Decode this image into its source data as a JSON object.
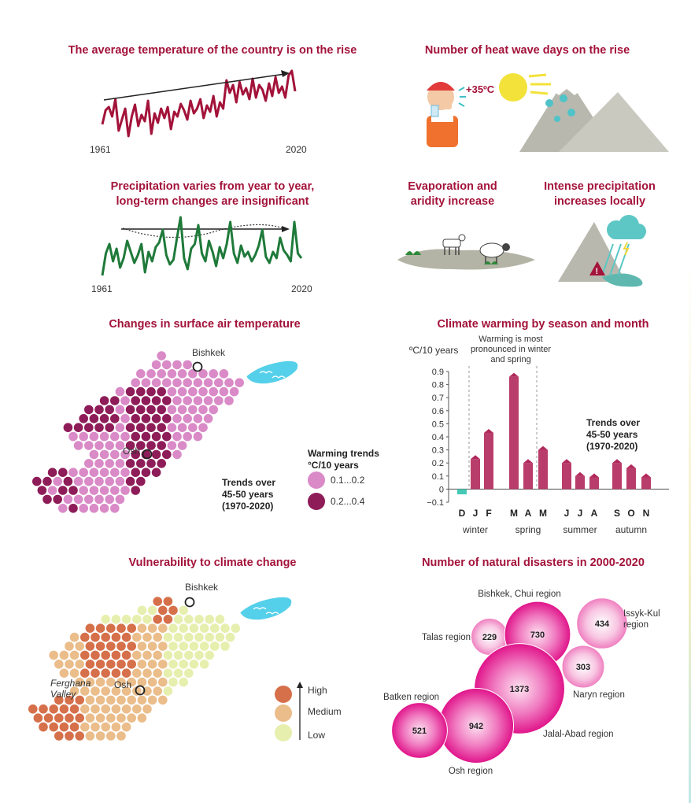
{
  "temperature_panel": {
    "title": "The average temperature of the country is on the rise",
    "start_year": "1961",
    "end_year": "2020"
  },
  "heatwave_panel": {
    "title": "Number of heat wave days on the rise",
    "temp_label": "+35ºC"
  },
  "precip_panel": {
    "title_line1": "Precipitation varies from year to year,",
    "title_line2": "long-term changes are insignificant",
    "start_year": "1961",
    "end_year": "2020"
  },
  "evaporation_panel": {
    "title_line1": "Evaporation and",
    "title_line2": "aridity increase"
  },
  "intense_precip_panel": {
    "title_line1": "Intense precipitation",
    "title_line2": "increases locally"
  },
  "surface_temp_map": {
    "title": "Changes in surface air temperature",
    "city1": "Bishkek",
    "city2": "Osh",
    "legend_title_line1": "Warming trends",
    "legend_title_line2": "°C/10 years",
    "legend_low": "0.1...0.2",
    "legend_high": "0.2...0.4",
    "note_line1": "Trends over",
    "note_line2": "45-50 years",
    "note_line3": "(1970-2020)",
    "colors": {
      "low": "#d98ac7",
      "high": "#8e1c58"
    }
  },
  "vulnerability_map": {
    "title": "Vulnerability to climate change",
    "city1": "Bishkek",
    "city2": "Osh",
    "region_label_line1": "Ferghana",
    "region_label_line2": "Valley",
    "legend_high": "High",
    "legend_medium": "Medium",
    "legend_low": "Low",
    "colors": {
      "high": "#d6704a",
      "medium": "#ebbd8a",
      "low": "#e7efae"
    }
  },
  "chart_data": [
    {
      "type": "line",
      "x": [
        1961,
        2020
      ],
      "series": [],
      "title": "The average temperature of the country is on the rise",
      "trend": "rising"
    },
    {
      "type": "line",
      "x": [
        1961,
        2020
      ],
      "series": [],
      "title": "Precipitation varies from year to year, long-term changes are insignificant",
      "trend": "no significant change"
    },
    {
      "type": "bar",
      "title": "Climate warming by season and month",
      "ylabel": "ºC/10 years",
      "annotation": "Warming is most pronounced in winter and spring",
      "note_line1": "Trends over",
      "note_line2": "45-50 years",
      "note_line3": "(1970-2020)",
      "ylim": [
        -0.1,
        0.9
      ],
      "yticks": [
        "0.9",
        "0.8",
        "0.7",
        "0.6",
        "0.5",
        "0.4",
        "0.3",
        "0.2",
        "0.1",
        "0",
        "−0.1"
      ],
      "categories": [
        "D",
        "J",
        "F",
        "M",
        "A",
        "M",
        "J",
        "J",
        "A",
        "S",
        "O",
        "N"
      ],
      "values": [
        -0.04,
        0.23,
        0.43,
        0.86,
        0.2,
        0.3,
        0.2,
        0.1,
        0.09,
        0.2,
        0.16,
        0.09
      ],
      "groups": [
        "winter",
        "spring",
        "summer",
        "autumn"
      ],
      "colors": {
        "positive": "#b1285a",
        "negative": "#46c9b4"
      }
    },
    {
      "type": "bubble",
      "title": "Number of natural disasters in 2000-2020",
      "items": [
        {
          "label": "Bishkek, Chui region",
          "value": 730
        },
        {
          "label": "Issyk-Kul region",
          "value": 434
        },
        {
          "label": "Talas region",
          "value": 229
        },
        {
          "label": "Naryn region",
          "value": 303
        },
        {
          "label": "Jalal-Abad region",
          "value": 1373
        },
        {
          "label": "Batken region",
          "value": 521
        },
        {
          "label": "Osh region",
          "value": 942
        }
      ]
    }
  ]
}
